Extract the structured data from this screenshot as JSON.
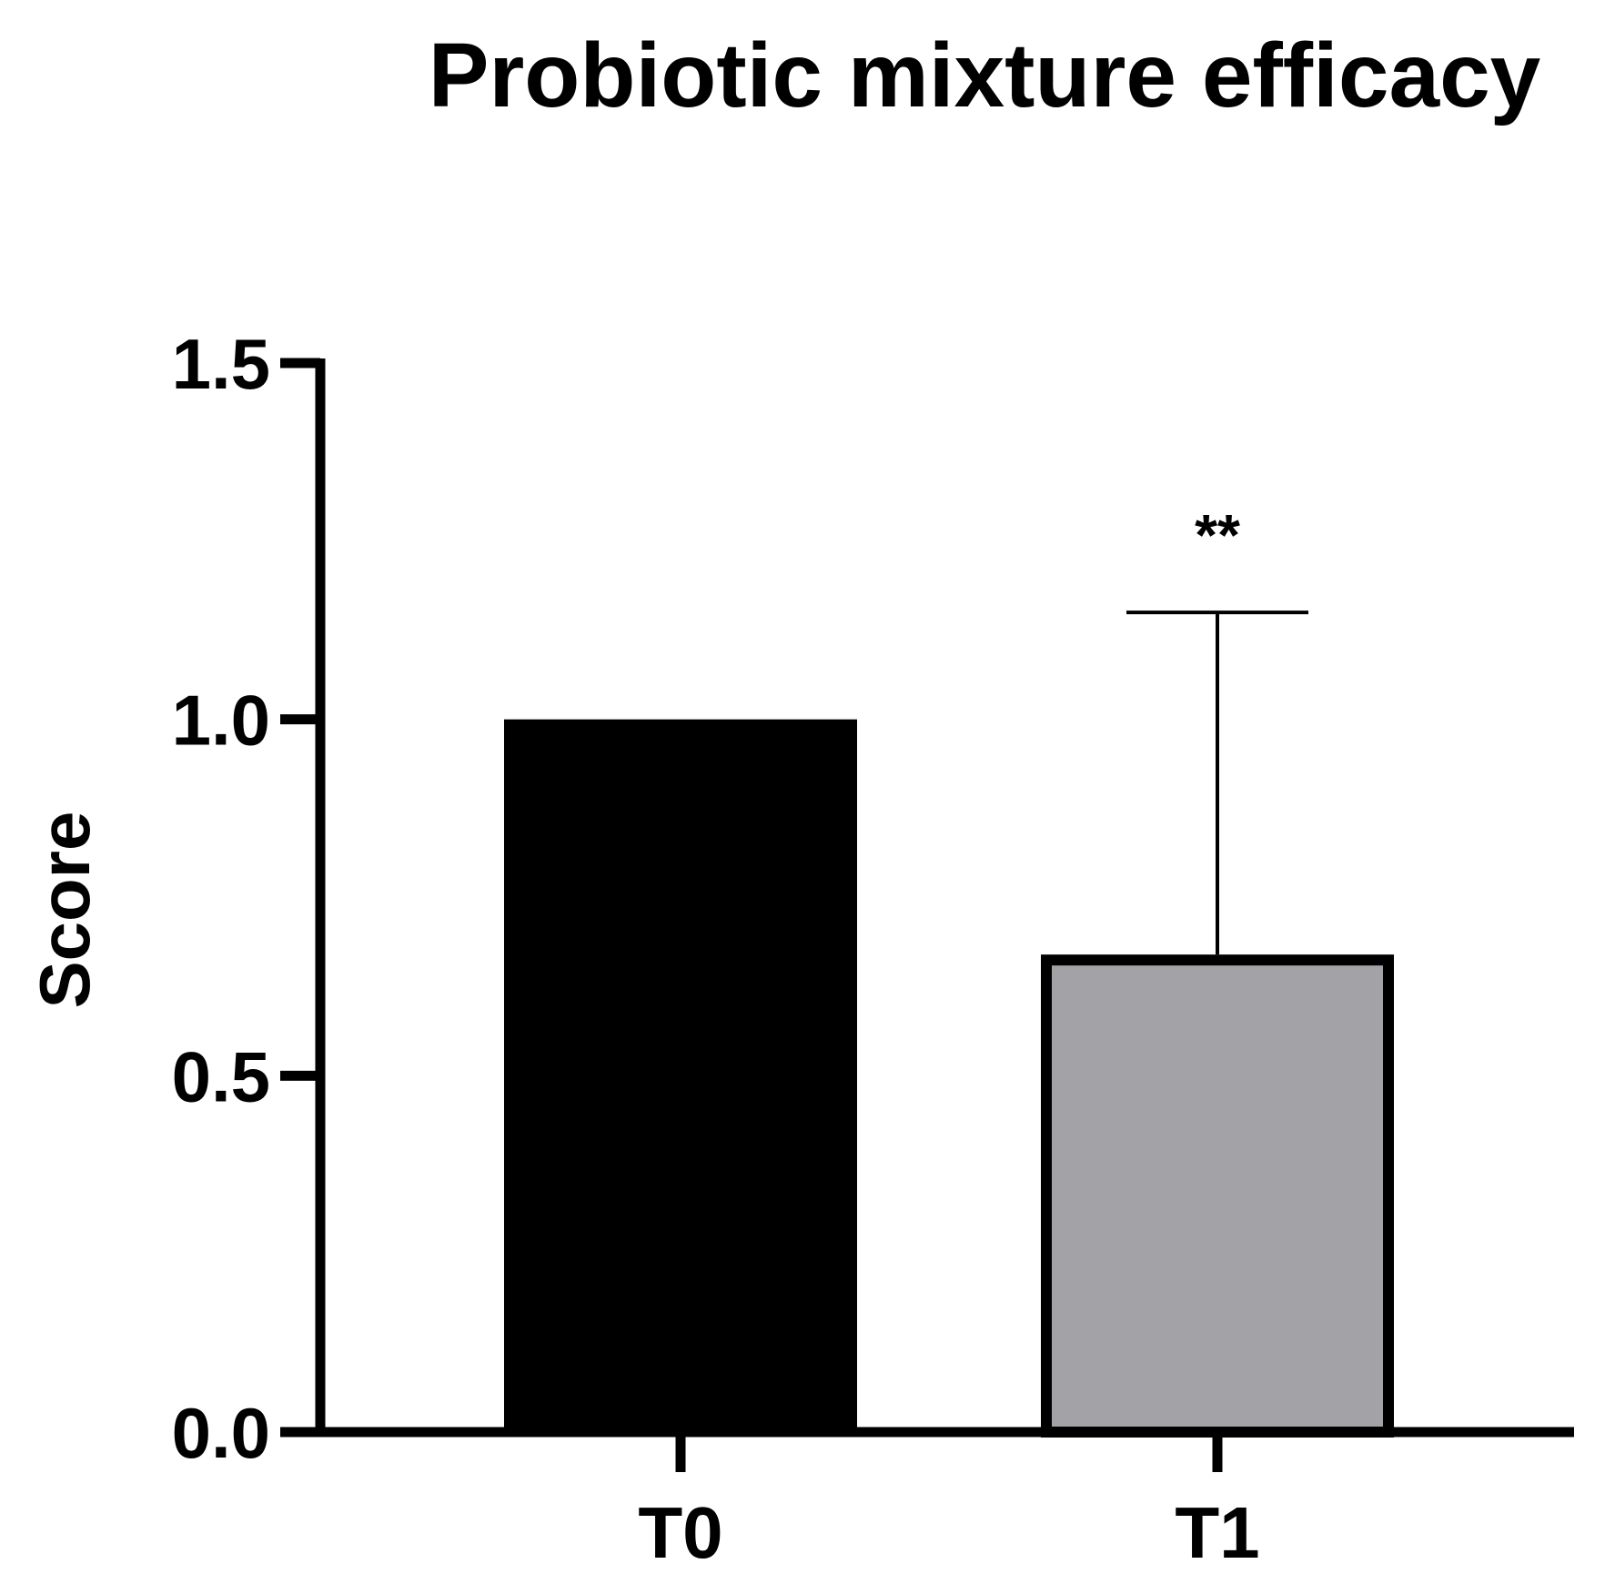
{
  "chart_data": {
    "type": "bar",
    "title": "Probiotic mixture efficacy",
    "xlabel": "",
    "ylabel": "Score",
    "categories": [
      "T0",
      "T1"
    ],
    "values": [
      1.0,
      0.67
    ],
    "error_upper": [
      null,
      1.15
    ],
    "annotations": [
      "",
      "**"
    ],
    "colors": [
      "#000000",
      "#a3a2a6"
    ],
    "ylim": [
      0,
      1.5
    ],
    "yticks": [
      "0.0",
      "0.5",
      "1.0",
      "1.5"
    ],
    "grid": false,
    "legend": "none"
  }
}
